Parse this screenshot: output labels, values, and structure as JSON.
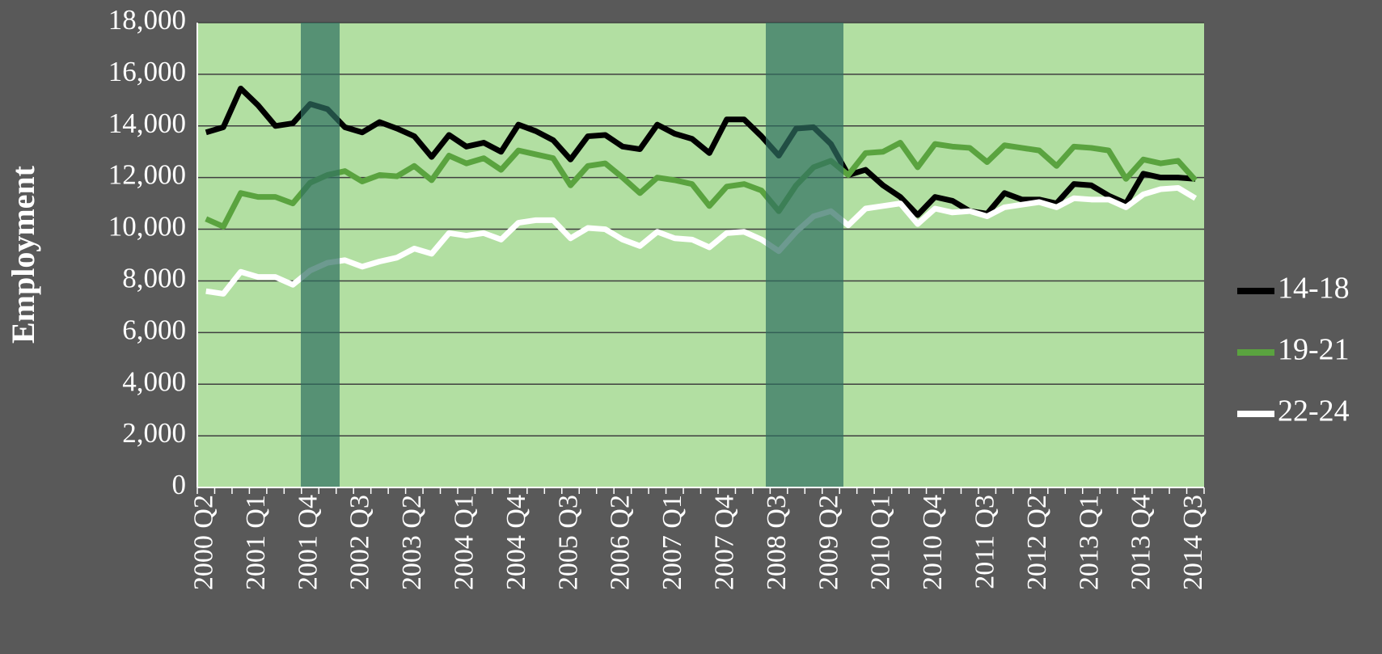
{
  "chart_data": {
    "type": "line",
    "y_label": "Employment",
    "categories": [
      "2000 Q2",
      null,
      null,
      "2001 Q1",
      null,
      null,
      "2001 Q4",
      null,
      null,
      "2002 Q3",
      null,
      null,
      "2003 Q2",
      null,
      null,
      "2004 Q1",
      null,
      null,
      "2004 Q4",
      null,
      null,
      "2005 Q3",
      null,
      null,
      "2006 Q2",
      null,
      null,
      "2007 Q1",
      null,
      null,
      "2007 Q4",
      null,
      null,
      "2008 Q3",
      null,
      null,
      "2009 Q2",
      null,
      null,
      "2010 Q1",
      null,
      null,
      "2010 Q4",
      null,
      null,
      "2011 Q3",
      null,
      null,
      "2012 Q2",
      null,
      null,
      "2013 Q1",
      null,
      null,
      "2013 Q4",
      null,
      null,
      "2014 Q3"
    ],
    "series": [
      {
        "name": "14-18",
        "color": "#000000",
        "values": [
          13750,
          13950,
          15450,
          14800,
          14000,
          14100,
          14850,
          14650,
          13950,
          13750,
          14150,
          13900,
          13600,
          12800,
          13650,
          13200,
          13350,
          13000,
          14050,
          13800,
          13450,
          12700,
          13600,
          13650,
          13200,
          13100,
          14050,
          13700,
          13500,
          12950,
          14250,
          14250,
          13600,
          12850,
          13900,
          13950,
          13300,
          12100,
          12300,
          11700,
          11250,
          10550,
          11250,
          11100,
          10700,
          10600,
          11400,
          11150,
          11150,
          11000,
          11750,
          11700,
          11300,
          11000,
          12150,
          12000,
          12000,
          11950
        ]
      },
      {
        "name": "19-21",
        "color": "#5aa33f",
        "values": [
          10400,
          10100,
          11400,
          11250,
          11250,
          11000,
          11800,
          12100,
          12250,
          11850,
          12100,
          12050,
          12450,
          11900,
          12850,
          12550,
          12750,
          12300,
          13050,
          12900,
          12750,
          11700,
          12450,
          12550,
          12000,
          11400,
          12000,
          11900,
          11750,
          10900,
          11650,
          11750,
          11500,
          10700,
          11700,
          12400,
          12650,
          12100,
          12950,
          13000,
          13350,
          12400,
          13300,
          13200,
          13150,
          12600,
          13250,
          13150,
          13050,
          12450,
          13200,
          13150,
          13050,
          11950,
          12700,
          12550,
          12650,
          11900
        ]
      },
      {
        "name": "22-24",
        "color": "#ffffff",
        "values": [
          7600,
          7500,
          8350,
          8150,
          8150,
          7850,
          8400,
          8700,
          8800,
          8550,
          8750,
          8900,
          9250,
          9050,
          9850,
          9750,
          9850,
          9600,
          10250,
          10350,
          10350,
          9650,
          10050,
          10000,
          9600,
          9350,
          9900,
          9650,
          9600,
          9300,
          9850,
          9900,
          9600,
          9150,
          9900,
          10500,
          10700,
          10150,
          10800,
          10900,
          11000,
          10200,
          10800,
          10650,
          10700,
          10500,
          10850,
          10950,
          11050,
          10850,
          11200,
          11150,
          11150,
          10850,
          11350,
          11550,
          11600,
          11200
        ]
      }
    ],
    "ylim": [
      0,
      18000
    ],
    "yticks": [
      0,
      {
        "value": 2000,
        "label": "2,000"
      },
      {
        "value": 4000,
        "label": "4,000"
      },
      {
        "value": 6000,
        "label": "6,000"
      },
      {
        "value": 8000,
        "label": "8,000"
      },
      {
        "value": 10000,
        "label": "10,000"
      },
      {
        "value": 12000,
        "label": "12,000"
      },
      {
        "value": 14000,
        "label": "14,000"
      },
      {
        "value": 16000,
        "label": "16,000"
      },
      {
        "value": 18000,
        "label": "18,000"
      }
    ],
    "grid": true,
    "legend": "right"
  }
}
